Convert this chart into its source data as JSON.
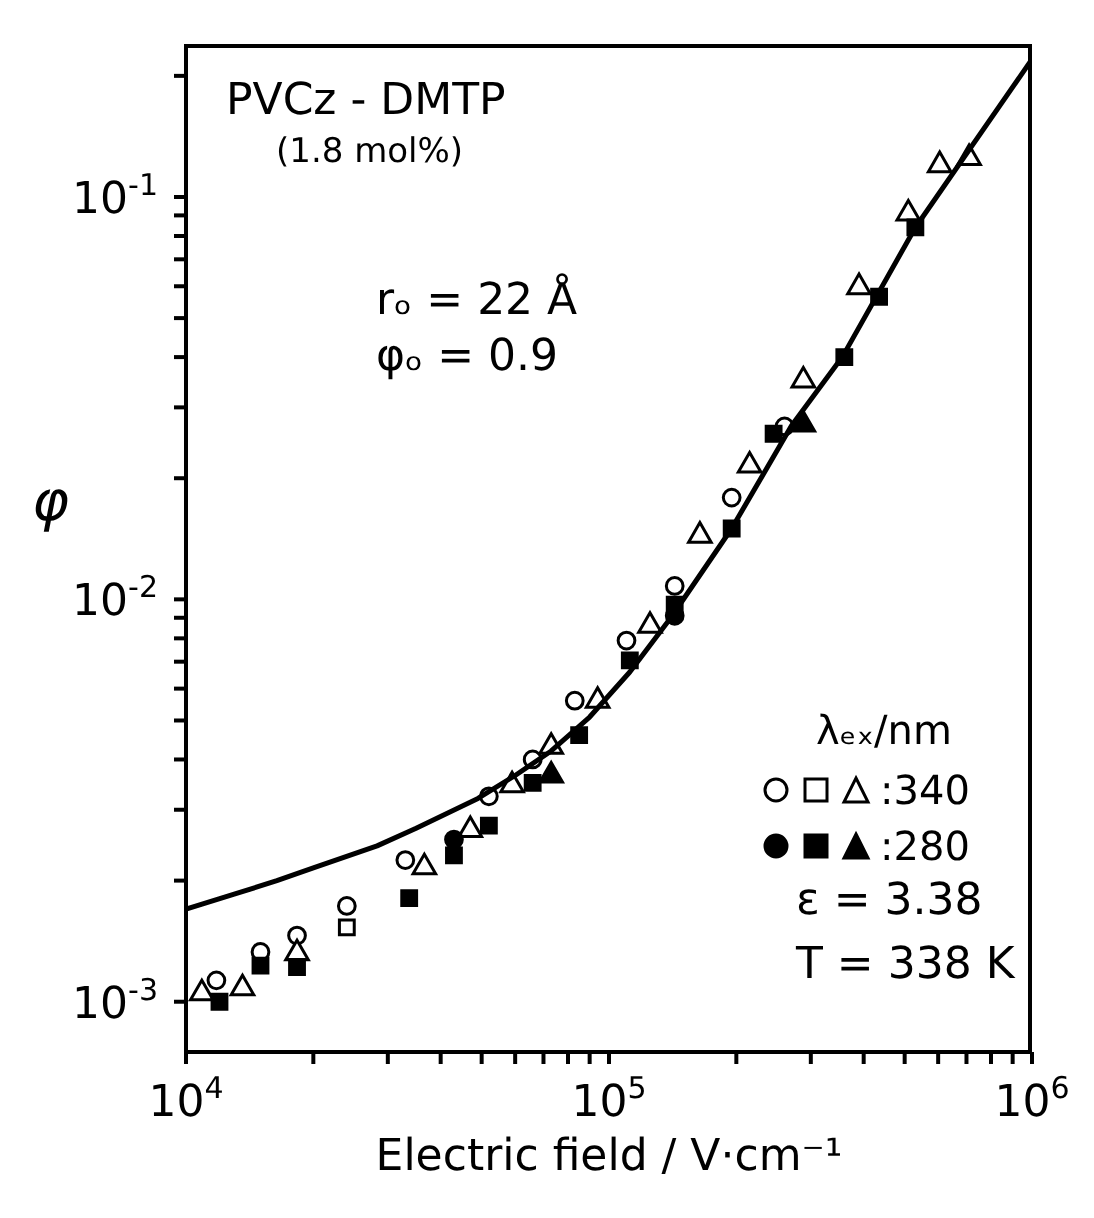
{
  "chart_data": {
    "type": "scatter",
    "xlabel": "Electric field / V·cm⁻¹",
    "ylabel": "φ",
    "legend_title": "λₑₓ/nm",
    "legend": "right",
    "log": "xy",
    "xlim": [
      10000,
      1000000
    ],
    "ylim": [
      0.00075,
      0.24
    ],
    "xticks": [
      {
        "value": 10000,
        "label": "10$^{4}$"
      },
      {
        "value": 20000,
        "label": null
      },
      {
        "value": 30000,
        "label": null
      },
      {
        "value": 40000,
        "label": null
      },
      {
        "value": 50000,
        "label": null
      },
      {
        "value": 60000,
        "label": null
      },
      {
        "value": 70000,
        "label": null
      },
      {
        "value": 80000,
        "label": null
      },
      {
        "value": 90000,
        "label": null
      },
      {
        "value": 100000,
        "label": "10$^{5}$"
      },
      {
        "value": 200000,
        "label": null
      },
      {
        "value": 300000,
        "label": null
      },
      {
        "value": 400000,
        "label": null
      },
      {
        "value": 500000,
        "label": null
      },
      {
        "value": 600000,
        "label": null
      },
      {
        "value": 700000,
        "label": null
      },
      {
        "value": 800000,
        "label": null
      },
      {
        "value": 900000,
        "label": null
      },
      {
        "value": 1000000,
        "label": "10$^{6}$"
      }
    ],
    "yticks": [
      {
        "value": 0.001,
        "label": "10$^{-3}$"
      },
      {
        "value": 0.002,
        "label": null
      },
      {
        "value": 0.003,
        "label": null
      },
      {
        "value": 0.004,
        "label": null
      },
      {
        "value": 0.005,
        "label": null
      },
      {
        "value": 0.006,
        "label": null
      },
      {
        "value": 0.007,
        "label": null
      },
      {
        "value": 0.008,
        "label": null
      },
      {
        "value": 0.009,
        "label": null
      },
      {
        "value": 0.01,
        "label": "10$^{-2}$"
      },
      {
        "value": 0.02,
        "label": null
      },
      {
        "value": 0.03,
        "label": null
      },
      {
        "value": 0.04,
        "label": null
      },
      {
        "value": 0.05,
        "label": null
      },
      {
        "value": 0.06,
        "label": null
      },
      {
        "value": 0.07,
        "label": null
      },
      {
        "value": 0.08,
        "label": null
      },
      {
        "value": 0.09,
        "label": null
      },
      {
        "value": 0.1,
        "label": "10$^{-1}$"
      },
      {
        "value": 0.2,
        "label": null
      }
    ],
    "annotations": [
      "PVCz - DMTP",
      "(1.8 mol%)",
      "rₒ = 22 Å",
      "φₒ = 0.9",
      "ε = 3.38",
      "T = 338 K"
    ],
    "series": [
      {
        "color": "#ffffff",
        "marker": "circle",
        "x": [
          11800,
          15000,
          18300,
          24000,
          33000,
          52000,
          66000,
          83000,
          110000,
          143000,
          195000,
          260000
        ],
        "values": [
          0.00113,
          0.00133,
          0.00146,
          0.00173,
          0.00225,
          0.00324,
          0.004,
          0.0056,
          0.0079,
          0.0108,
          0.0179,
          0.0269
        ]
      },
      {
        "color": "#ffffff",
        "marker": "square",
        "x": [
          24000
        ],
        "values": [
          0.00153
        ]
      },
      {
        "name": ":340",
        "color": "#ffffff",
        "marker": "triangle",
        "x": [
          10900,
          13600,
          18300,
          36600,
          47000,
          59000,
          73000,
          94000,
          125000,
          164000,
          215000,
          288000,
          390000,
          510000,
          605000,
          710000
        ],
        "values": [
          0.00105,
          0.00108,
          0.00132,
          0.00216,
          0.00267,
          0.00345,
          0.0043,
          0.0056,
          0.0086,
          0.0144,
          0.0215,
          0.035,
          0.0597,
          0.091,
          0.12,
          0.125
        ]
      },
      {
        "color": "#000000",
        "marker": "circle",
        "x": [
          43000,
          143000
        ],
        "values": [
          0.00253,
          0.0091
        ]
      },
      {
        "color": "#000000",
        "marker": "square",
        "x": [
          12000,
          15000,
          18300,
          33700,
          43000,
          52000,
          66000,
          85000,
          112000,
          143000,
          195000,
          245000,
          360000,
          435000,
          530000
        ],
        "values": [
          0.001,
          0.00123,
          0.00122,
          0.00181,
          0.00231,
          0.00274,
          0.0035,
          0.0046,
          0.00705,
          0.0097,
          0.015,
          0.0258,
          0.04,
          0.0565,
          0.084
        ]
      },
      {
        "name": ":280",
        "color": "#000000",
        "marker": "triangle",
        "x": [
          73000,
          288000
        ],
        "values": [
          0.00365,
          0.0272
        ]
      },
      {
        "type": "line",
        "color": "#000000",
        "marker": "none",
        "line_style": "solid",
        "x": [
          10000,
          13000,
          16400,
          20000,
          28300,
          35000,
          49000,
          60000,
          73000,
          90000,
          112000,
          140000,
          195000,
          270000,
          356000,
          530000,
          1000000
        ],
        "values": [
          0.0017,
          0.00185,
          0.002,
          0.00215,
          0.00244,
          0.0027,
          0.0032,
          0.00365,
          0.0042,
          0.0051,
          0.0066,
          0.009,
          0.015,
          0.027,
          0.04,
          0.084,
          0.22
        ]
      }
    ]
  }
}
